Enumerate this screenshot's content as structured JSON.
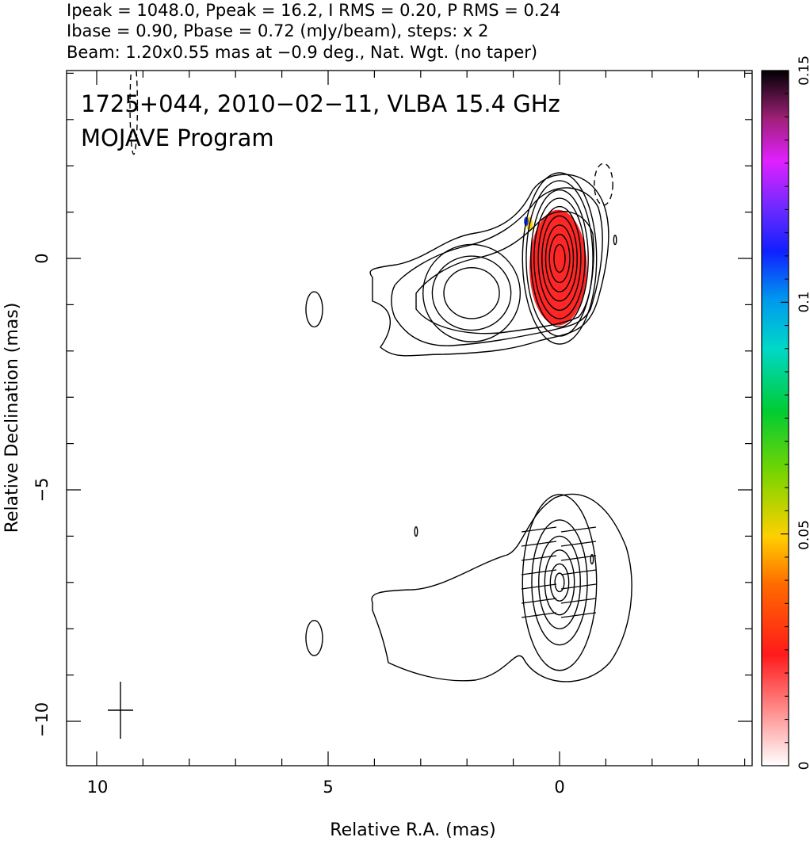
{
  "header": {
    "line1": "Ipeak = 1048.0, Ppeak = 16.2, I RMS = 0.20, P RMS = 0.24",
    "line2": "Ibase = 0.90, Pbase = 0.72 (mJy/beam), steps: x 2",
    "line3": "Beam: 1.20x0.55 mas at −0.9 deg., Nat. Wgt. (no taper)"
  },
  "annotation": {
    "line1": "1725+044, 2010−02−11, VLBA 15.4 GHz",
    "line2": "MOJAVE Program"
  },
  "chart_data": {
    "type": "heatmap",
    "title": "1725+044, 2010−02−11, VLBA 15.4 GHz",
    "subtitle": "MOJAVE Program",
    "xlabel": "Relative R.A. (mas)",
    "ylabel": "Relative Declination (mas)",
    "xlim": [
      10.9,
      -4.7
    ],
    "ylim": [
      -11.0,
      4.1
    ],
    "x_ticks": [
      10,
      5,
      0
    ],
    "x_tick_labels": [
      "10",
      "5",
      "0"
    ],
    "y_ticks": [
      0,
      -5,
      -10
    ],
    "y_tick_labels": [
      "0",
      "−5",
      "−10"
    ],
    "colorbar": {
      "range": [
        0,
        0.15
      ],
      "ticks": [
        0,
        0.05,
        0.1,
        0.15
      ],
      "tick_labels": [
        "0",
        "0.05",
        "0.1",
        "0.15"
      ]
    },
    "beam": {
      "major_mas": 1.2,
      "minor_mas": 0.55,
      "pa_deg": -0.9
    },
    "upper_panel": {
      "center": [
        0,
        0
      ],
      "core_contours": [
        [
          0.8,
          1.85
        ],
        [
          0.72,
          1.68
        ],
        [
          0.62,
          1.48
        ],
        [
          0.55,
          1.3
        ],
        [
          0.46,
          1.12
        ],
        [
          0.38,
          0.92
        ],
        [
          0.3,
          0.72
        ],
        [
          0.22,
          0.52
        ],
        [
          0.12,
          0.3
        ]
      ],
      "knot": {
        "center": [
          1.9,
          -0.75
        ],
        "contours": [
          [
            0.6,
            0.55
          ],
          [
            0.85,
            0.8
          ],
          [
            1.05,
            1.05
          ]
        ]
      },
      "extended_contours": 3,
      "polarized_region": {
        "center": [
          0.03,
          -0.2
        ],
        "radius_x_mas": 0.62,
        "radius_y_mas": 1.25,
        "fractional_pol": 0.02
      },
      "negative_contours": [
        [
          -0.95,
          1.6
        ],
        [
          9.2,
          3.3
        ]
      ],
      "isolated_components": [
        [
          5.3,
          -1.1
        ],
        [
          -1.2,
          0.4
        ]
      ]
    },
    "lower_panel": {
      "center": [
        0,
        -7
      ],
      "core_contours": [
        [
          0.8,
          1.9
        ],
        [
          0.6,
          1.35
        ],
        [
          0.45,
          1.0
        ],
        [
          0.32,
          0.7
        ],
        [
          0.2,
          0.4
        ],
        [
          0.1,
          0.2
        ]
      ],
      "evpa_vectors": 14,
      "isolated_components": [
        [
          5.3,
          -8.2
        ],
        [
          -0.7,
          -6.5
        ],
        [
          3.1,
          -5.9
        ]
      ]
    }
  }
}
